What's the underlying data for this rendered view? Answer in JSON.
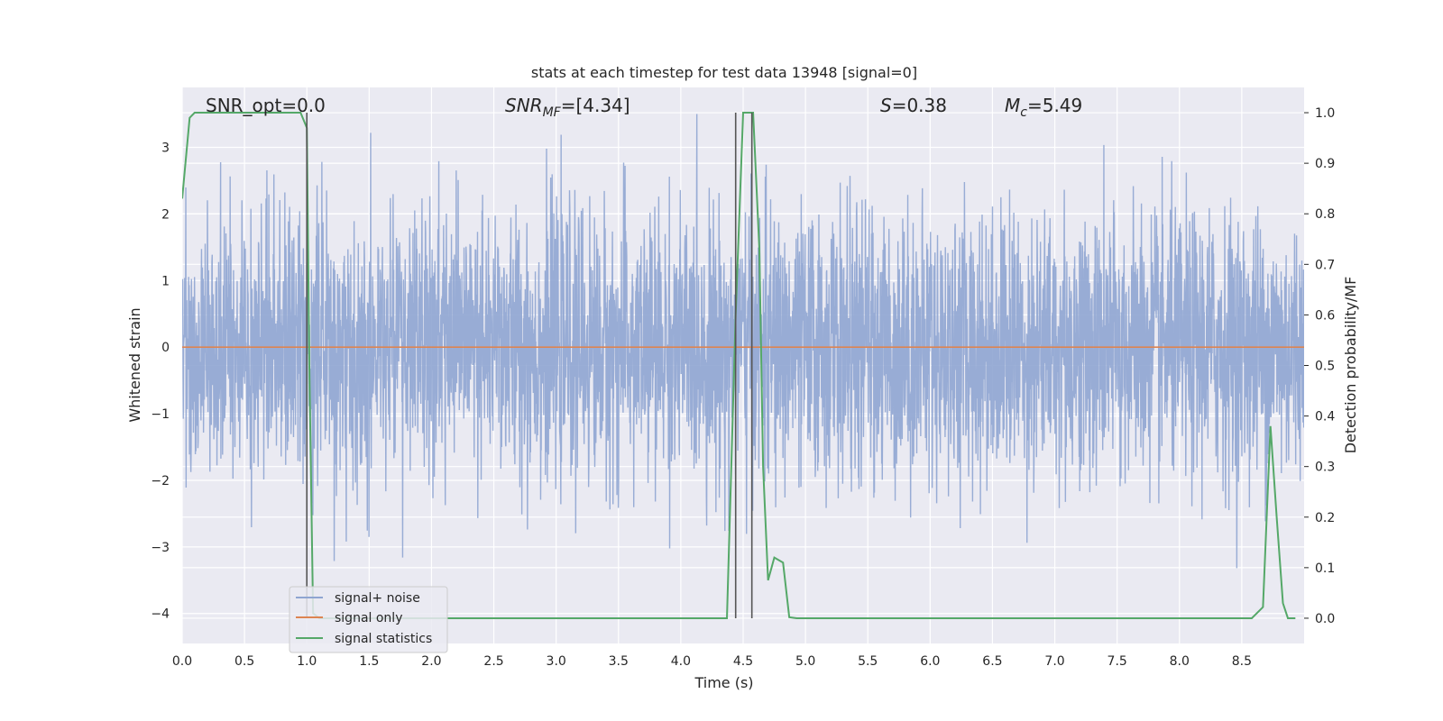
{
  "chart_data": {
    "type": "line",
    "title": "stats at each timestep for test data 13948 [signal=0]",
    "xlabel": "Time (s)",
    "ylabel": "Whitened strain",
    "y2label": "Detection probability/MF",
    "xlim": [
      0,
      9.0
    ],
    "ylim": [
      -4.45,
      3.9
    ],
    "y2lim": [
      -0.05,
      1.05
    ],
    "x_ticks": [
      0,
      0.5,
      1,
      1.5,
      2,
      2.5,
      3,
      3.5,
      4,
      4.5,
      5,
      5.5,
      6,
      6.5,
      7,
      7.5,
      8,
      8.5
    ],
    "x_tick_labels": [
      "0.0",
      "0.5",
      "1.0",
      "1.5",
      "2.0",
      "2.5",
      "3.0",
      "3.5",
      "4.0",
      "4.5",
      "5.0",
      "5.5",
      "6.0",
      "6.5",
      "7.0",
      "7.5",
      "8.0",
      "8.5"
    ],
    "y_ticks": [
      -4,
      -3,
      -2,
      -1,
      0,
      1,
      2,
      3
    ],
    "y_tick_labels": [
      "−4",
      "−3",
      "−2",
      "−1",
      "0",
      "1",
      "2",
      "3"
    ],
    "y2_ticks": [
      0,
      0.1,
      0.2,
      0.3,
      0.4,
      0.5,
      0.6,
      0.7,
      0.8,
      0.9,
      1.0
    ],
    "y2_tick_labels": [
      "0.0",
      "0.1",
      "0.2",
      "0.3",
      "0.4",
      "0.5",
      "0.6",
      "0.7",
      "0.8",
      "0.9",
      "1.0"
    ],
    "grid": true,
    "legend_position": "lower-left",
    "annotations": {
      "snr_opt": "SNR_opt=0.0",
      "snr_mf_main": "SNR",
      "snr_mf_sub": "MF",
      "snr_mf_value": "=[4.34]",
      "s_symbol": "S",
      "s_value": "=0.38",
      "mc_symbol": "M",
      "mc_sub": "c",
      "mc_value": "=5.49"
    },
    "vertical_markers": [
      {
        "x": 1.0,
        "y2_top": 1.0
      },
      {
        "x": 4.44,
        "y2_top": 1.0
      },
      {
        "x": 4.57,
        "y2_top": 1.0
      }
    ],
    "series": [
      {
        "name": "signal+ noise",
        "color": "#8fa5d1",
        "kind": "noise",
        "sigma": 1.0,
        "range": [
          -4.0,
          3.5
        ]
      },
      {
        "name": "signal only",
        "color": "#dd8452",
        "kind": "line",
        "x": [
          0,
          9.0
        ],
        "y": [
          0,
          0
        ]
      },
      {
        "name": "signal statistics",
        "color": "#55a868",
        "kind": "line",
        "axis": "right",
        "x": [
          0.0,
          0.06,
          0.1,
          0.2,
          0.3,
          0.5,
          0.7,
          0.9,
          0.95,
          1.0,
          1.02,
          1.05,
          1.1,
          1.3,
          2.0,
          3.0,
          4.0,
          4.37,
          4.44,
          4.5,
          4.53,
          4.58,
          4.63,
          4.66,
          4.7,
          4.75,
          4.82,
          4.87,
          4.93,
          5.0,
          5.5,
          6.0,
          7.0,
          8.0,
          8.58,
          8.67,
          8.73,
          8.78,
          8.83,
          8.87,
          8.93
        ],
        "y": [
          0.83,
          0.99,
          1.0,
          1.0,
          1.0,
          1.0,
          1.0,
          1.0,
          1.0,
          0.97,
          0.5,
          0.01,
          0.0,
          0.0,
          0.0,
          0.0,
          0.0,
          0.0,
          0.6,
          1.0,
          1.0,
          1.0,
          0.73,
          0.3,
          0.075,
          0.12,
          0.11,
          0.002,
          0.0,
          0.0,
          0.0,
          0.0,
          0.0,
          0.0,
          0.0,
          0.022,
          0.38,
          0.2,
          0.03,
          0.0,
          0.0
        ]
      }
    ]
  }
}
